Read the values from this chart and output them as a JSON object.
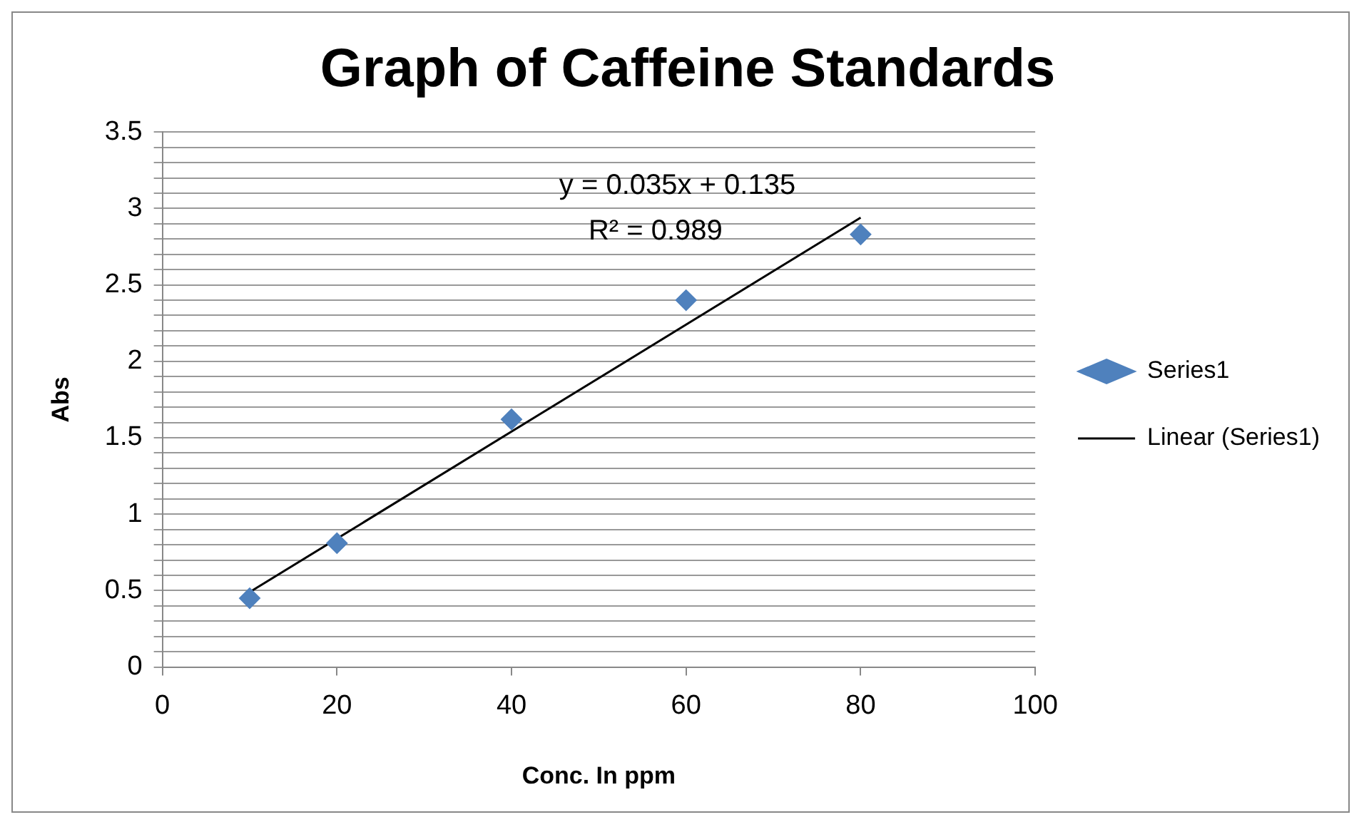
{
  "chart_data": {
    "type": "scatter",
    "title": "Graph of Caffeine Standards",
    "xlabel": "Conc. In ppm",
    "ylabel": "Abs",
    "series": [
      {
        "name": "Series1",
        "color": "#4f81bd",
        "marker": "diamond",
        "x": [
          10,
          20,
          40,
          60,
          80
        ],
        "values": [
          0.45,
          0.81,
          1.62,
          2.4,
          2.83
        ]
      },
      {
        "type": "line",
        "name": "Linear (Series1)",
        "color": "#000000",
        "marker": "none",
        "x": [
          10,
          80
        ],
        "values": [
          0.49,
          2.94
        ]
      }
    ],
    "annotations": [
      "y = 0.035x + 0.135",
      "R² = 0.989"
    ],
    "xlim": [
      0,
      100
    ],
    "xticks": [
      0,
      20,
      40,
      60,
      80,
      100
    ],
    "ylim": [
      0,
      3.5
    ],
    "yticks": [
      0,
      {
        "value": 0.1,
        "label": null
      },
      {
        "value": 0.2,
        "label": null
      },
      {
        "value": 0.3,
        "label": null
      },
      {
        "value": 0.4,
        "label": null
      },
      0.5,
      {
        "value": 0.6,
        "label": null
      },
      {
        "value": 0.7,
        "label": null
      },
      {
        "value": 0.8,
        "label": null
      },
      {
        "value": 0.9,
        "label": null
      },
      1,
      {
        "value": 1.1,
        "label": null
      },
      {
        "value": 1.2,
        "label": null
      },
      {
        "value": 1.3,
        "label": null
      },
      {
        "value": 1.4,
        "label": null
      },
      1.5,
      {
        "value": 1.6,
        "label": null
      },
      {
        "value": 1.7,
        "label": null
      },
      {
        "value": 1.8,
        "label": null
      },
      {
        "value": 1.9,
        "label": null
      },
      2,
      {
        "value": 2.1,
        "label": null
      },
      {
        "value": 2.2,
        "label": null
      },
      {
        "value": 2.3,
        "label": null
      },
      {
        "value": 2.4,
        "label": null
      },
      2.5,
      {
        "value": 2.6,
        "label": null
      },
      {
        "value": 2.7,
        "label": null
      },
      {
        "value": 2.8,
        "label": null
      },
      {
        "value": 2.9,
        "label": null
      },
      3,
      {
        "value": 3.1,
        "label": null
      },
      {
        "value": 3.2,
        "label": null
      },
      {
        "value": 3.3,
        "label": null
      },
      {
        "value": 3.4,
        "label": null
      },
      3.5
    ],
    "grid": "y",
    "legend": "right"
  }
}
